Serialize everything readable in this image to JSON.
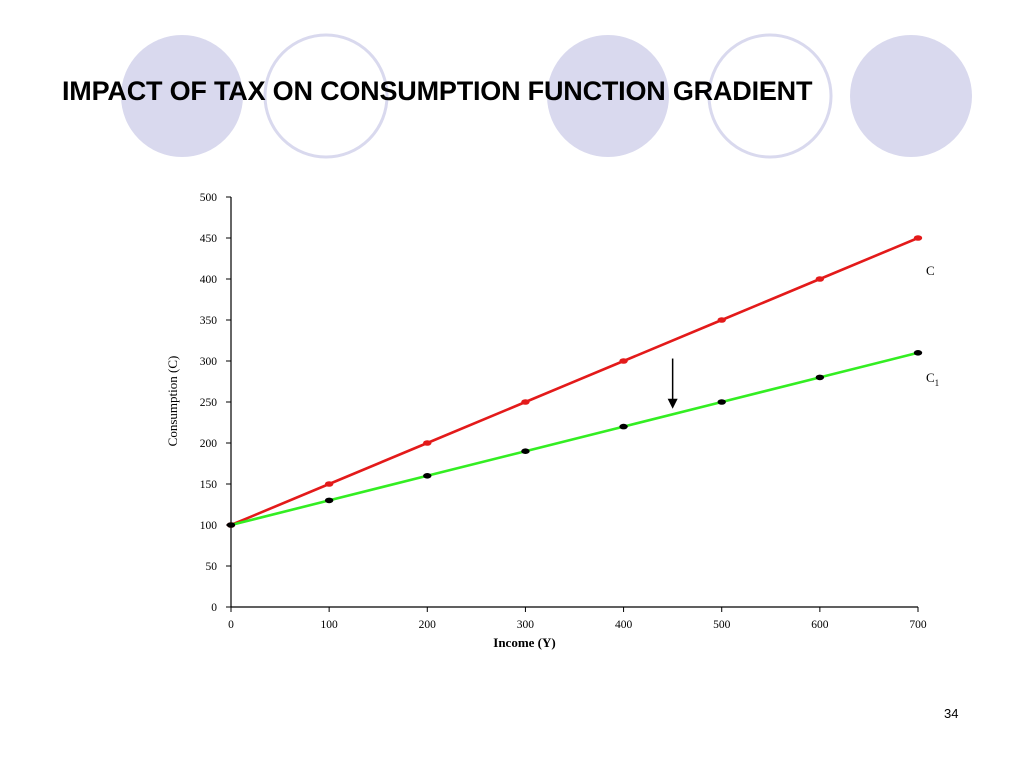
{
  "slide": {
    "title": "IMPACT OF TAX ON CONSUMPTION FUNCTION GRADIENT",
    "page_number": "34",
    "decor_fill": "#d9d9ee",
    "decor_stroke": "#d9d9ee"
  },
  "chart_data": {
    "type": "line",
    "title": "",
    "xlabel": "Income (Y)",
    "ylabel": "Consumption (C)",
    "xlim": [
      0,
      700
    ],
    "ylim": [
      0,
      500
    ],
    "x_ticks": [
      0,
      100,
      200,
      300,
      400,
      500,
      600,
      700
    ],
    "y_ticks": [
      0,
      50,
      100,
      150,
      200,
      250,
      300,
      350,
      400,
      450,
      500
    ],
    "grid": false,
    "x": [
      0,
      100,
      200,
      300,
      400,
      500,
      600,
      700
    ],
    "series": [
      {
        "name": "C",
        "values": [
          100,
          150,
          200,
          250,
          300,
          350,
          400,
          450
        ],
        "color": "#e31a1a",
        "marker_color": "#e31a1a"
      },
      {
        "name": "C",
        "subscript": "1",
        "values": [
          100,
          130,
          160,
          190,
          220,
          250,
          280,
          310
        ],
        "color": "#33ee22",
        "marker_color": "#000000"
      }
    ],
    "annotations": [
      {
        "type": "arrow",
        "direction": "down",
        "x": 450,
        "y_from": 303,
        "y_to": 243
      }
    ]
  }
}
